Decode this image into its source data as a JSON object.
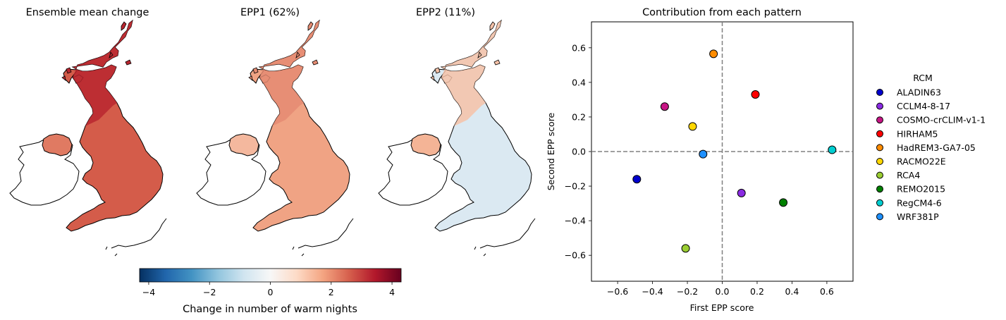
{
  "maps": [
    {
      "title": "Ensemble mean change",
      "style": "uniform-warming"
    },
    {
      "title": "EPP1 (62%)",
      "style": "moderate-warming"
    },
    {
      "title": "EPP2 (11%)",
      "style": "north-south-dipole"
    }
  ],
  "colorbar": {
    "label": "Change in number of warm nights",
    "colormap": "RdBu_r",
    "range": [
      -4.3,
      4.3
    ],
    "ticks": [
      "−4",
      "−2",
      "0",
      "2",
      "4"
    ],
    "tick_values": [
      -4,
      -2,
      0,
      2,
      4
    ]
  },
  "chart_data": {
    "type": "scatter",
    "title": "Contribution from each pattern",
    "xlabel": "First EPP score",
    "ylabel": "Second EPP score",
    "xlim": [
      -0.75,
      0.75
    ],
    "ylim": [
      -0.75,
      0.75
    ],
    "xticks": [
      -0.6,
      -0.4,
      -0.2,
      0.0,
      0.2,
      0.4,
      0.6
    ],
    "yticks": [
      -0.6,
      -0.4,
      -0.2,
      0.0,
      0.2,
      0.4,
      0.6
    ],
    "xtick_labels": [
      "−0.6",
      "−0.4",
      "−0.2",
      "0.0",
      "0.2",
      "0.4",
      "0.6"
    ],
    "ytick_labels": [
      "−0.6",
      "−0.4",
      "−0.2",
      "0.0",
      "0.2",
      "0.4",
      "0.6"
    ],
    "reference_lines": {
      "x": 0,
      "y": 0,
      "style": "dashed",
      "color": "#808080"
    },
    "grid": false,
    "legend": {
      "title": "RCM",
      "placement": "right-outside"
    },
    "series": [
      {
        "name": "ALADIN63",
        "color": "#0000cd",
        "x": -0.49,
        "y": -0.16
      },
      {
        "name": "CCLM4-8-17",
        "color": "#8a2be2",
        "x": 0.11,
        "y": -0.24
      },
      {
        "name": "COSMO-crCLIM-v1-1",
        "color": "#c71585",
        "x": -0.33,
        "y": 0.26
      },
      {
        "name": "HIRHAM5",
        "color": "#ff0000",
        "x": 0.19,
        "y": 0.33
      },
      {
        "name": "HadREM3-GA7-05",
        "color": "#ff8c00",
        "x": -0.05,
        "y": 0.565
      },
      {
        "name": "RACMO22E",
        "color": "#ffd700",
        "x": -0.17,
        "y": 0.145
      },
      {
        "name": "RCA4",
        "color": "#9acd32",
        "x": -0.21,
        "y": -0.56
      },
      {
        "name": "REMO2015",
        "color": "#008000",
        "x": 0.35,
        "y": -0.295
      },
      {
        "name": "RegCM4-6",
        "color": "#00ced1",
        "x": 0.63,
        "y": 0.01
      },
      {
        "name": "WRF381P",
        "color": "#1e90ff",
        "x": -0.11,
        "y": -0.015
      }
    ]
  }
}
